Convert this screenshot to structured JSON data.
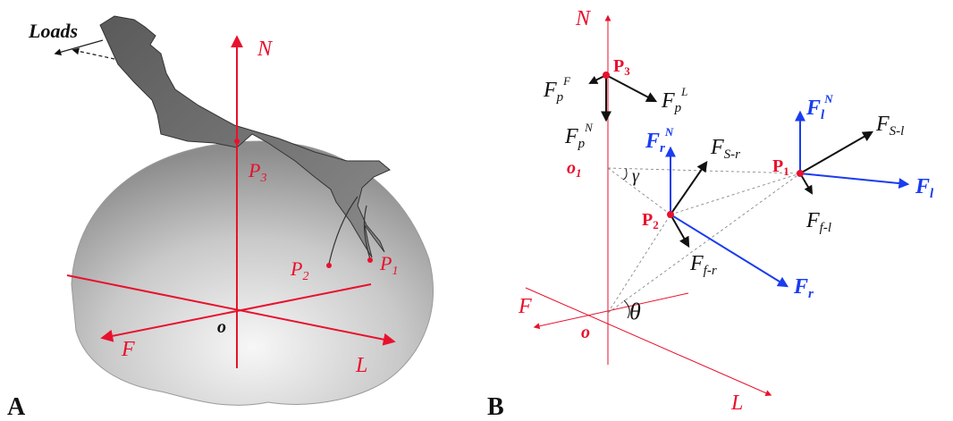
{
  "colors": {
    "axis": "#e8112d",
    "force_blue": "#1a3cf0",
    "force_black": "#111111",
    "claw": "#6b6b6b",
    "dome_light": "#f6f6f6",
    "dome_dark": "#8a8a8a"
  },
  "panel_a": {
    "label": "A",
    "loads": "Loads",
    "axis_n": "N",
    "axis_f": "F",
    "axis_l": "L",
    "origin": "o",
    "p3": "P",
    "p3_sub": "3",
    "p2": "P",
    "p2_sub": "2",
    "p1": "P",
    "p1_sub": "1"
  },
  "panel_b": {
    "label": "B",
    "axis_n": "N",
    "axis_f": "F",
    "axis_l": "L",
    "origin": "o",
    "o1": "o",
    "o1_sub": "1",
    "gamma": "γ",
    "theta": "θ",
    "p3": "P",
    "p3_sub": "3",
    "p2": "P",
    "p2_sub": "2",
    "p1": "P",
    "p1_sub": "1",
    "fpf": "F",
    "fpf_sub": "p",
    "fpf_sup": "F",
    "fpl": "F",
    "fpl_sub": "p",
    "fpl_sup": "L",
    "fpn": "F",
    "fpn_sub": "p",
    "fpn_sup": "N",
    "frn": "F",
    "frn_sub": "r",
    "frn_sup": "N",
    "fsr": "F",
    "fsr_sub": "S-r",
    "ffr": "F",
    "ffr_sub": "f-r",
    "fr": "F",
    "fr_sub": "r",
    "fln": "F",
    "fln_sub": "l",
    "fln_sup": "N",
    "fsl": "F",
    "fsl_sub": "S-l",
    "fl": "F",
    "fl_sub": "l",
    "ffl": "F",
    "ffl_sub": "f-l"
  }
}
